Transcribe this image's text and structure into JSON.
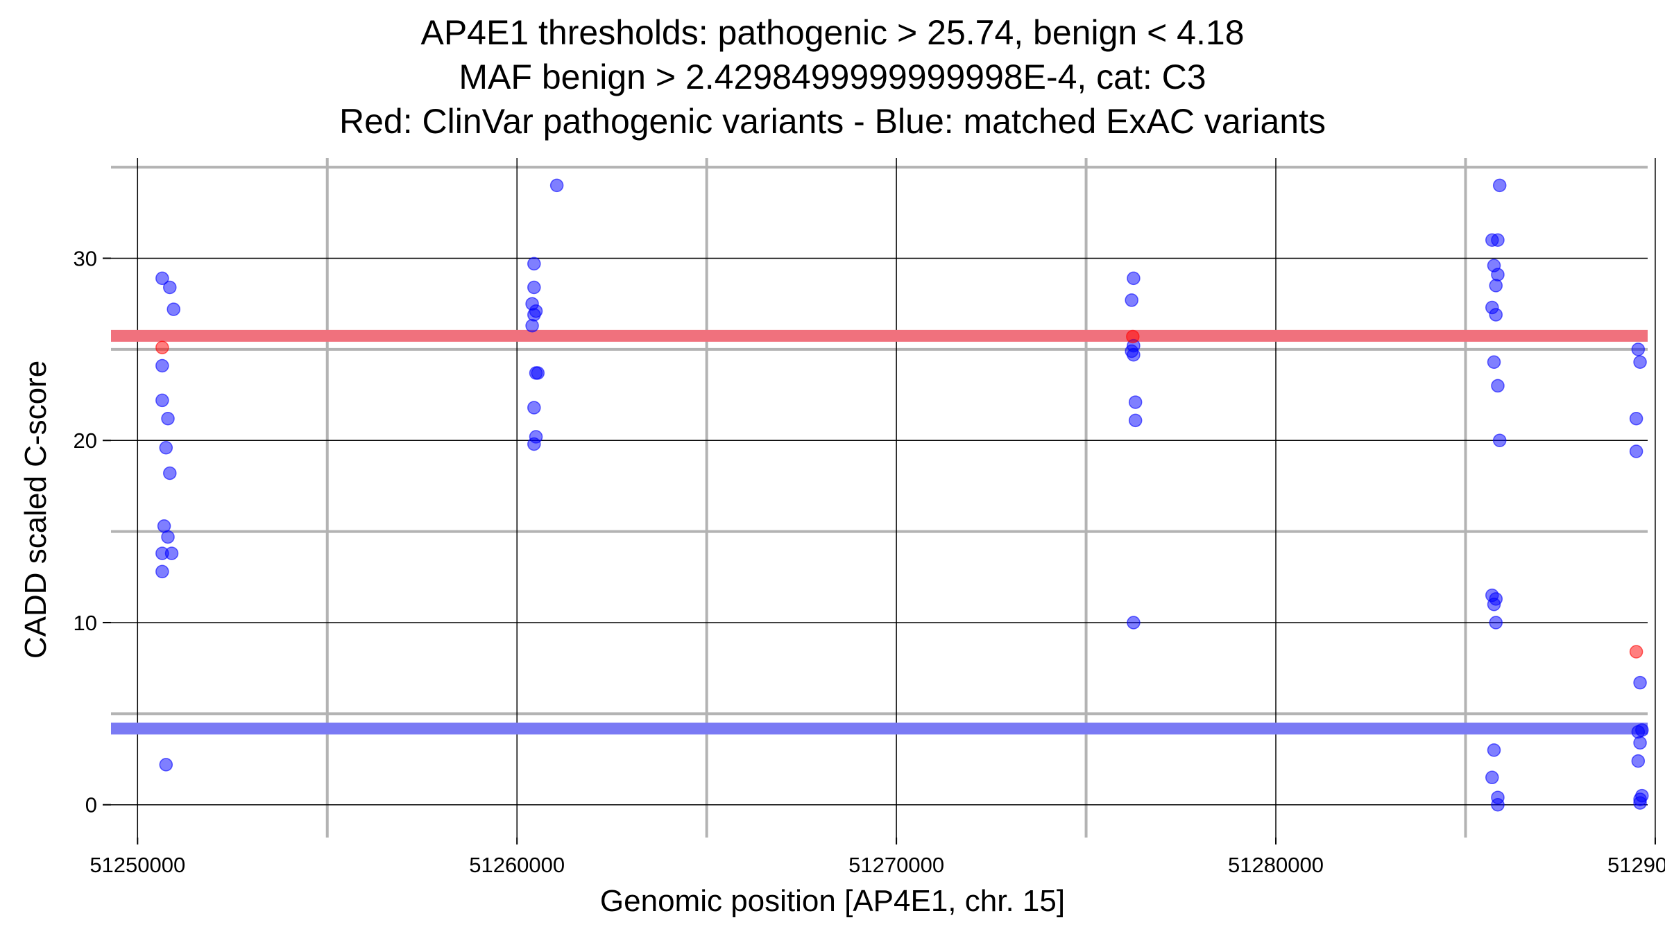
{
  "chart_data": {
    "type": "scatter",
    "title": "AP4E1 thresholds: pathogenic > 25.74, benign < 4.18",
    "subtitle": "MAF benign > 2.4298499999999998E-4, cat: C3",
    "subtitle2": "Red: ClinVar pathogenic variants - Blue: matched ExAC variants",
    "xlabel": "Genomic position [AP4E1, chr. 15]",
    "ylabel": "CADD scaled C-score",
    "xlim": [
      51249300,
      51289800
    ],
    "ylim": [
      -1.8,
      35.5
    ],
    "x_ticks": [
      51250000,
      51260000,
      51270000,
      51280000,
      51290000
    ],
    "x_tick_labels": [
      "51250000",
      "51260000",
      "51270000",
      "51280000",
      "51290000"
    ],
    "y_ticks": [
      0,
      10,
      20,
      30
    ],
    "y_tick_labels": [
      "0",
      "10",
      "20",
      "30"
    ],
    "x_minor_grid": [
      51255000,
      51265000,
      51275000,
      51285000
    ],
    "y_minor_grid": [
      5,
      15,
      25,
      35
    ],
    "thresholds": [
      {
        "name": "pathogenic",
        "value": 25.74,
        "color": "#f0717d"
      },
      {
        "name": "benign",
        "value": 4.18,
        "color": "#7a7af4"
      }
    ],
    "series": [
      {
        "name": "ClinVar pathogenic variants",
        "color": "#ff0000",
        "x": [
          51250650,
          51276230,
          51289500
        ],
        "y": [
          25.1,
          25.7,
          8.4
        ]
      },
      {
        "name": "matched ExAC variants",
        "color": "#0000ff",
        "x": [
          51250650,
          51250850,
          51250950,
          51250650,
          51250650,
          51250800,
          51250750,
          51250850,
          51250700,
          51250800,
          51250650,
          51250900,
          51250650,
          51250750,
          51261050,
          51260450,
          51260450,
          51260400,
          51260500,
          51260450,
          51260400,
          51260500,
          51260550,
          51260450,
          51260500,
          51260450,
          51276250,
          51276200,
          51276250,
          51276200,
          51276250,
          51276300,
          51276300,
          51276250,
          51285900,
          51285700,
          51285850,
          51285750,
          51285850,
          51285800,
          51285700,
          51285800,
          51285750,
          51285850,
          51285900,
          51285700,
          51285800,
          51285750,
          51285800,
          51285750,
          51285700,
          51285850,
          51285850,
          51289550,
          51289600,
          51289500,
          51289500,
          51289600,
          51289650,
          51289550,
          51289600,
          51289550,
          51289650,
          51289600,
          51289600
        ],
        "y": [
          28.9,
          28.4,
          27.2,
          24.1,
          22.2,
          21.2,
          19.6,
          18.2,
          15.3,
          14.7,
          13.8,
          13.8,
          12.8,
          2.2,
          34.0,
          29.7,
          28.4,
          27.5,
          27.1,
          26.9,
          26.3,
          23.7,
          23.7,
          21.8,
          20.2,
          19.8,
          28.9,
          27.7,
          25.2,
          24.9,
          24.7,
          22.1,
          21.1,
          10.0,
          34.0,
          31.0,
          31.0,
          29.6,
          29.1,
          28.5,
          27.3,
          26.9,
          24.3,
          23.0,
          20.0,
          11.5,
          11.3,
          11.0,
          10.0,
          3.0,
          1.5,
          0.4,
          0.0,
          25.0,
          24.3,
          21.2,
          19.4,
          6.7,
          4.1,
          4.0,
          3.4,
          2.4,
          0.5,
          0.3,
          0.1
        ]
      }
    ]
  }
}
